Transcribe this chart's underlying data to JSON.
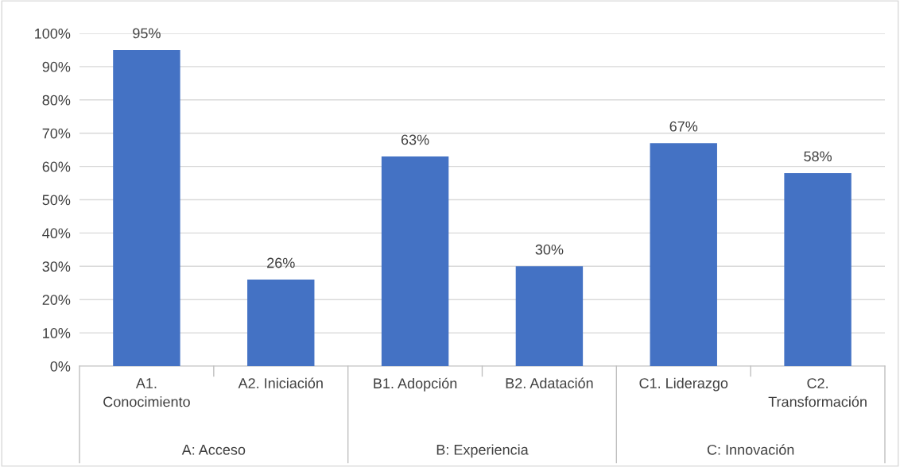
{
  "chart_data": {
    "type": "bar",
    "categories": [
      "A1.\nConocimiento",
      "A2. Iniciación",
      "B1. Adopción",
      "B2. Adatación",
      "C1. Liderazgo",
      "C2.\nTransformación"
    ],
    "values": [
      95,
      26,
      63,
      30,
      67,
      58
    ],
    "value_labels": [
      "95%",
      "26%",
      "63%",
      "30%",
      "67%",
      "58%"
    ],
    "color": "#4472c4",
    "ylim": [
      0,
      100
    ],
    "yticks": [
      {
        "value": 0,
        "label": "0%"
      },
      {
        "value": 10,
        "label": "10%"
      },
      {
        "value": 20,
        "label": "20%"
      },
      {
        "value": 30,
        "label": "30%"
      },
      {
        "value": 40,
        "label": "40%"
      },
      {
        "value": 50,
        "label": "50%"
      },
      {
        "value": 60,
        "label": "60%"
      },
      {
        "value": 70,
        "label": "70%"
      },
      {
        "value": 80,
        "label": "80%"
      },
      {
        "value": 90,
        "label": "90%"
      },
      {
        "value": 100,
        "label": "100%"
      }
    ],
    "annotations": [
      "A: Acceso",
      "B: Experiencia",
      "C: Innovación"
    ],
    "grid": "y"
  }
}
